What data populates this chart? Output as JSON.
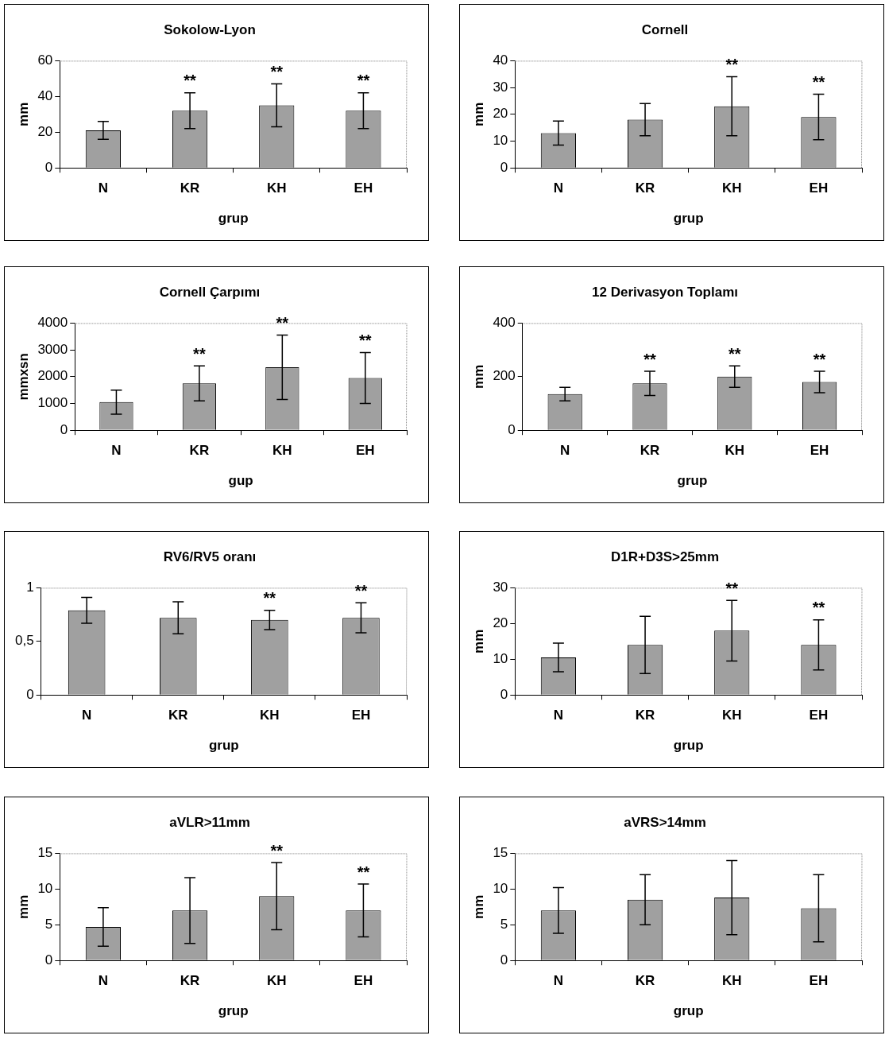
{
  "chart_data": [
    {
      "type": "bar",
      "title": "Sokolow-Lyon",
      "xlabel": "grup",
      "ylabel": "mm",
      "categories": [
        "N",
        "KR",
        "KH",
        "EH"
      ],
      "values": [
        21,
        32,
        35,
        32
      ],
      "errors": [
        5,
        10,
        12,
        10
      ],
      "color": "#a0a0a0",
      "ylim": [
        0,
        60
      ],
      "yticks": [
        0,
        20,
        40,
        60
      ],
      "annotations": [
        "**",
        "**",
        "**"
      ]
    },
    {
      "type": "bar",
      "title": "Cornell",
      "xlabel": "grup",
      "ylabel": "mm",
      "categories": [
        "N",
        "KR",
        "KH",
        "EH"
      ],
      "values": [
        13,
        18,
        23,
        19
      ],
      "errors": [
        4.5,
        6,
        11,
        8.5
      ],
      "color": "#a0a0a0",
      "ylim": [
        0,
        40
      ],
      "yticks": [
        0,
        10,
        20,
        30,
        40
      ],
      "annotations": [
        "**",
        "**"
      ]
    },
    {
      "type": "bar",
      "title": "Cornell Çarpımı",
      "xlabel": "gup",
      "ylabel": "mmxsn",
      "categories": [
        "N",
        "KR",
        "KH",
        "EH"
      ],
      "values": [
        1050,
        1750,
        2350,
        1950
      ],
      "errors": [
        450,
        650,
        1200,
        950
      ],
      "color": "#a0a0a0",
      "ylim": [
        0,
        4000
      ],
      "yticks": [
        0,
        1000,
        2000,
        3000,
        4000
      ],
      "annotations": [
        "**",
        "**",
        "**"
      ]
    },
    {
      "type": "bar",
      "title": "12 Derivasyon Toplamı",
      "xlabel": "grup",
      "ylabel": "mm",
      "categories": [
        "N",
        "KR",
        "KH",
        "EH"
      ],
      "values": [
        135,
        175,
        200,
        180
      ],
      "errors": [
        25,
        45,
        40,
        40
      ],
      "color": "#a0a0a0",
      "ylim": [
        0,
        400
      ],
      "yticks": [
        0,
        200,
        400
      ],
      "annotations": [
        "**",
        "**",
        "**"
      ]
    },
    {
      "type": "bar",
      "title": "RV6/RV5 oranı",
      "xlabel": "grup",
      "categories": [
        "N",
        "KR",
        "KH",
        "EH"
      ],
      "values": [
        0.79,
        0.72,
        0.7,
        0.72
      ],
      "errors": [
        0.12,
        0.15,
        0.09,
        0.14
      ],
      "color": "#a0a0a0",
      "ylim": [
        0,
        1
      ],
      "yticks": [
        0,
        {
          "value": 0.5,
          "label": "0,5"
        },
        1
      ],
      "annotations": [
        "**",
        "**"
      ]
    },
    {
      "type": "bar",
      "title": "D1R+D3S>25mm",
      "xlabel": "grup",
      "ylabel": "mm",
      "categories": [
        "N",
        "KR",
        "KH",
        "EH"
      ],
      "values": [
        10.5,
        14,
        18,
        14
      ],
      "errors": [
        4,
        8,
        8.5,
        7
      ],
      "color": "#a0a0a0",
      "ylim": [
        0,
        30
      ],
      "yticks": [
        0,
        10,
        20,
        30
      ],
      "annotations": [
        "**",
        "**"
      ]
    },
    {
      "type": "bar",
      "title": "aVLR>11mm",
      "xlabel": "grup",
      "ylabel": "mm",
      "categories": [
        "N",
        "KR",
        "KH",
        "EH"
      ],
      "values": [
        4.7,
        7,
        9,
        7
      ],
      "errors": [
        2.7,
        4.6,
        4.7,
        3.7
      ],
      "color": "#a0a0a0",
      "ylim": [
        0,
        15
      ],
      "yticks": [
        0,
        5,
        10,
        15
      ],
      "annotations": [
        "**",
        "**"
      ]
    },
    {
      "type": "bar",
      "title": "aVRS>14mm",
      "xlabel": "grup",
      "ylabel": "mm",
      "categories": [
        "N",
        "KR",
        "KH",
        "EH"
      ],
      "values": [
        7,
        8.5,
        8.8,
        7.3
      ],
      "errors": [
        3.2,
        3.5,
        5.2,
        4.7
      ],
      "color": "#a0a0a0",
      "ylim": [
        0,
        15
      ],
      "yticks": [
        0,
        5,
        10,
        15
      ]
    }
  ]
}
